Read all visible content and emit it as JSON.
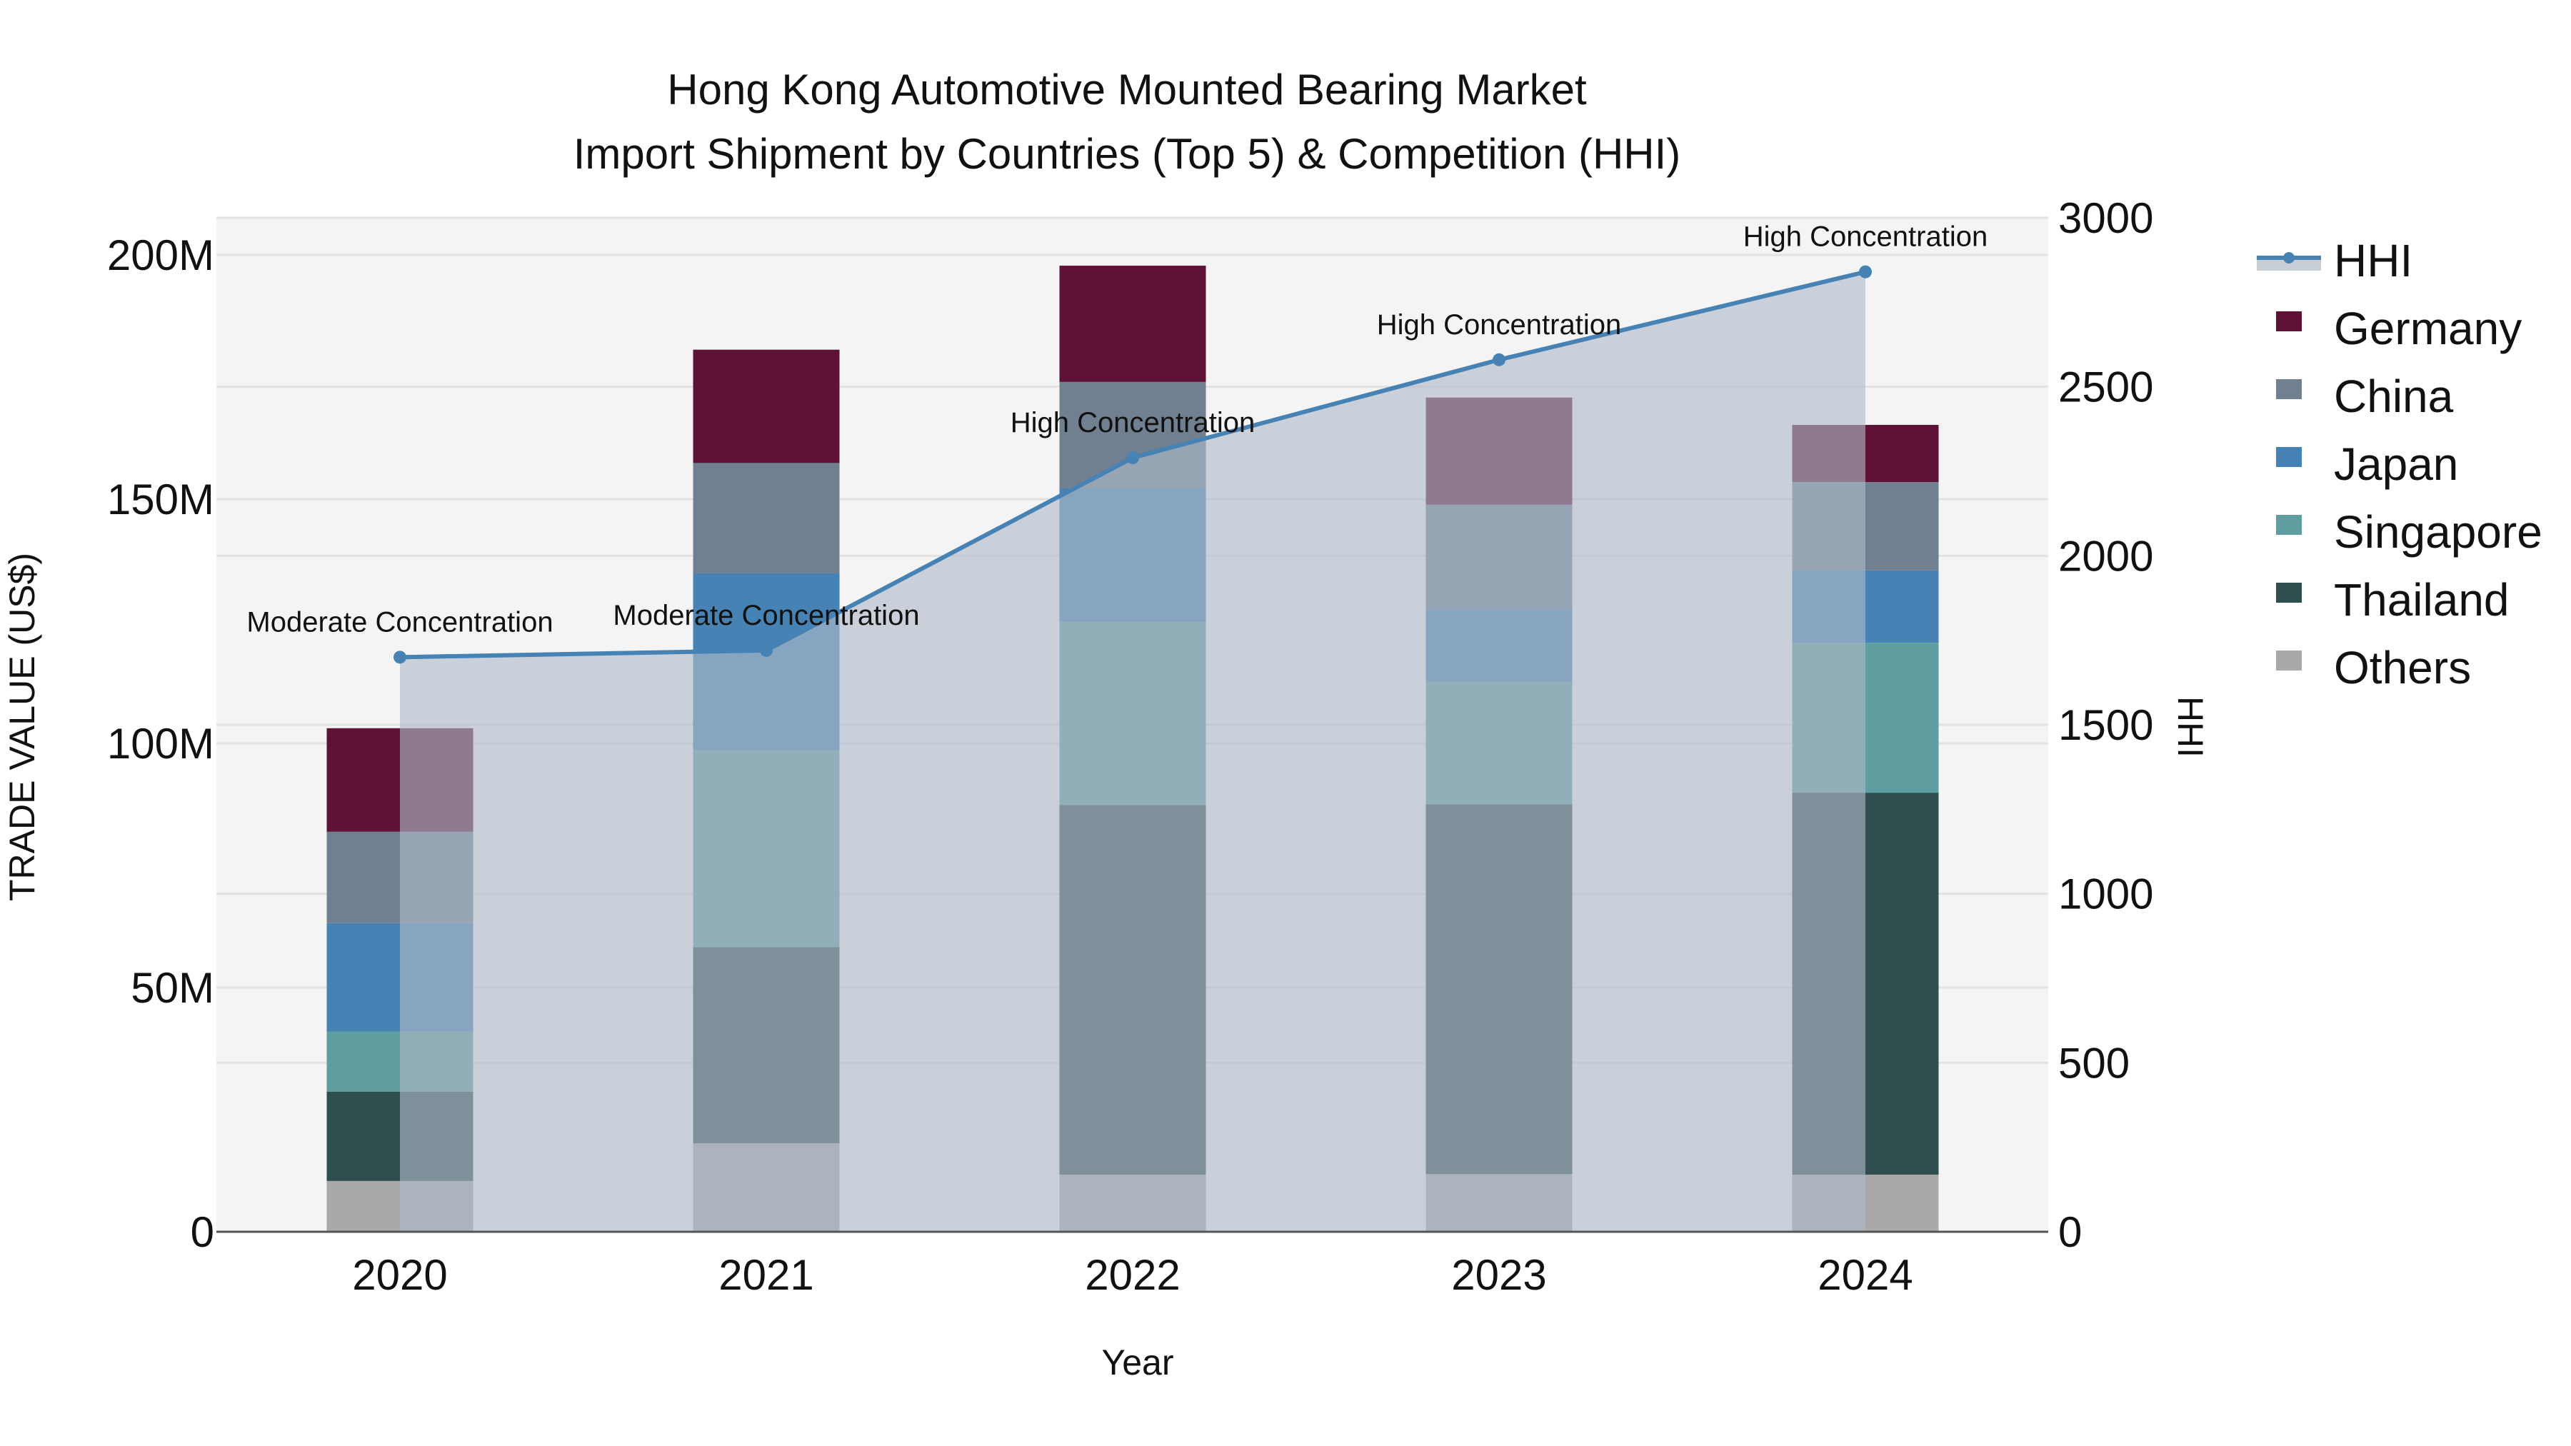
{
  "title": {
    "line1": "Hong Kong Automotive Mounted Bearing Market",
    "line2": "Import Shipment by Countries (Top 5) & Competition (HHI)"
  },
  "axes": {
    "x_title": "Year",
    "y_left_title": "TRADE VALUE (US$)",
    "y_right_title": "HHI",
    "x_ticks": [
      "2020",
      "2021",
      "2022",
      "2023",
      "2024"
    ],
    "y_left_ticks": [
      "0",
      "50M",
      "100M",
      "150M",
      "200M"
    ],
    "y_right_ticks": [
      "0",
      "500",
      "1000",
      "1500",
      "2000",
      "2500",
      "3000"
    ]
  },
  "legend": {
    "items": [
      {
        "label": "HHI",
        "type": "line",
        "color": "#4682B4"
      },
      {
        "label": "Germany",
        "type": "square",
        "color": "#5E1336"
      },
      {
        "label": "China",
        "type": "square",
        "color": "#708090"
      },
      {
        "label": "Japan",
        "type": "square",
        "color": "#4682B4"
      },
      {
        "label": "Singapore",
        "type": "square",
        "color": "#5F9EA0"
      },
      {
        "label": "Thailand",
        "type": "square",
        "color": "#2F4F4F"
      },
      {
        "label": "Others",
        "type": "square",
        "color": "#A9A9A9"
      }
    ]
  },
  "annotations": [
    {
      "year": "2020",
      "text": "Moderate Concentration"
    },
    {
      "year": "2021",
      "text": "Moderate Concentration"
    },
    {
      "year": "2022",
      "text": "High Concentration"
    },
    {
      "year": "2023",
      "text": "High Concentration"
    },
    {
      "year": "2024",
      "text": "High Concentration"
    }
  ],
  "chart_data": {
    "type": "bar",
    "subtype": "stacked bar + line (dual axis)",
    "title": "Hong Kong Automotive Mounted Bearing Market Import Shipment by Countries (Top 5) & Competition (HHI)",
    "xlabel": "Year",
    "ylabel": "TRADE VALUE (US$)",
    "y2label": "HHI",
    "categories": [
      "2020",
      "2021",
      "2022",
      "2023",
      "2024"
    ],
    "ylim": [
      0,
      207600000
    ],
    "y2lim": [
      0,
      3000
    ],
    "stack_order_bottom_to_top": [
      "Others",
      "Thailand",
      "Singapore",
      "Japan",
      "China",
      "Germany"
    ],
    "series": [
      {
        "name": "Others",
        "axis": "left",
        "color": "#A9A9A9",
        "values": [
          10400000,
          18100000,
          11700000,
          11800000,
          11700000
        ]
      },
      {
        "name": "Thailand",
        "axis": "left",
        "color": "#2F4F4F",
        "values": [
          18300000,
          40200000,
          75700000,
          75700000,
          78200000
        ]
      },
      {
        "name": "Singapore",
        "axis": "left",
        "color": "#5F9EA0",
        "values": [
          12300000,
          40300000,
          37500000,
          25100000,
          30700000
        ]
      },
      {
        "name": "Japan",
        "axis": "left",
        "color": "#4682B4",
        "values": [
          22200000,
          36200000,
          27300000,
          14800000,
          14800000
        ]
      },
      {
        "name": "China",
        "axis": "left",
        "color": "#708090",
        "values": [
          18700000,
          22600000,
          21800000,
          21500000,
          18100000
        ]
      },
      {
        "name": "Germany",
        "axis": "left",
        "color": "#5E1336",
        "values": [
          21200000,
          23200000,
          23800000,
          21900000,
          11700000
        ]
      },
      {
        "name": "HHI",
        "axis": "right",
        "type": "line+area",
        "color": "#4682B4",
        "values": [
          1700,
          1720,
          2290,
          2580,
          2840
        ]
      }
    ],
    "totals": [
      103100000,
      180600000,
      197800000,
      170800000,
      165200000
    ],
    "annotations": [
      "Moderate Concentration",
      "Moderate Concentration",
      "High Concentration",
      "High Concentration",
      "High Concentration"
    ],
    "grid": true,
    "legend_position": "right"
  }
}
